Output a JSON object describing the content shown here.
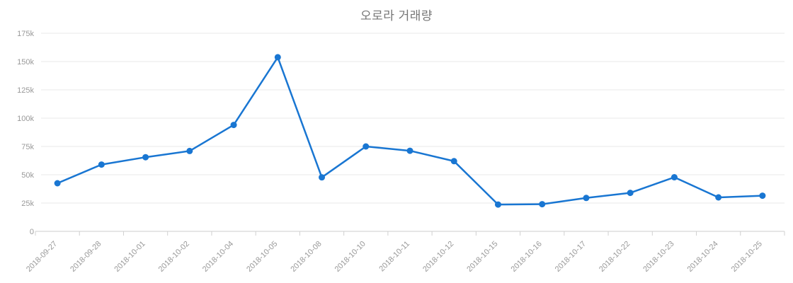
{
  "title": "오로라 거래량",
  "colors": {
    "line": "#1976d2",
    "marker": "#1976d2",
    "gridline": "#e8e8e8",
    "axis_line": "#cccccc",
    "tick": "#d0d0d0",
    "tick_label": "#999999",
    "title_text": "#757575"
  },
  "chart_data": {
    "type": "line",
    "title": "오로라 거래량",
    "xlabel": "",
    "ylabel": "",
    "legend": "none",
    "grid": "horizontal",
    "marker": "circle",
    "ylim": [
      0,
      175000
    ],
    "ytick_step": 25000,
    "ytick_labels": [
      "0",
      "25k",
      "50k",
      "75k",
      "100k",
      "125k",
      "150k",
      "175k"
    ],
    "categories": [
      "2018-09-27",
      "2018-09-28",
      "2018-10-01",
      "2018-10-02",
      "2018-10-04",
      "2018-10-05",
      "2018-10-08",
      "2018-10-10",
      "2018-10-11",
      "2018-10-12",
      "2018-10-15",
      "2018-10-16",
      "2018-10-17",
      "2018-10-22",
      "2018-10-23",
      "2018-10-24",
      "2018-10-25"
    ],
    "series": [
      {
        "name": "거래량",
        "values": [
          42500,
          59000,
          65500,
          71000,
          94000,
          153800,
          47700,
          75000,
          71200,
          62000,
          23700,
          24000,
          29500,
          34000,
          47800,
          30000,
          31500
        ]
      }
    ]
  }
}
